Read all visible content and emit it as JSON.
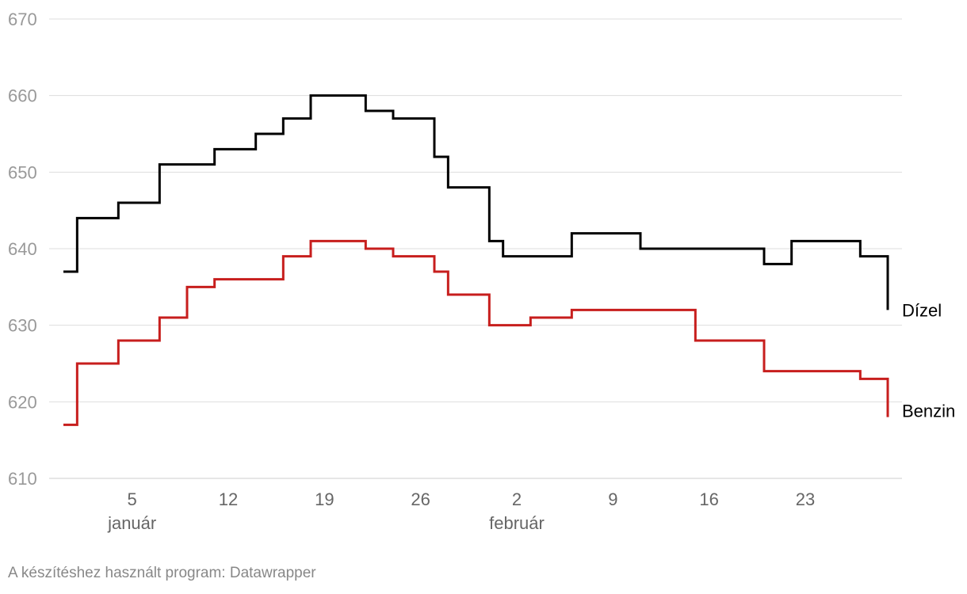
{
  "chart_data": {
    "type": "line",
    "step": true,
    "ylim": [
      610,
      670
    ],
    "yticks": [
      610,
      620,
      630,
      640,
      650,
      660,
      670
    ],
    "x_ticks": [
      {
        "date": "2025-01-05",
        "label": "5"
      },
      {
        "date": "2025-01-12",
        "label": "12"
      },
      {
        "date": "2025-01-19",
        "label": "19"
      },
      {
        "date": "2025-01-26",
        "label": "26"
      },
      {
        "date": "2025-02-02",
        "label": "2"
      },
      {
        "date": "2025-02-09",
        "label": "9"
      },
      {
        "date": "2025-02-16",
        "label": "16"
      },
      {
        "date": "2025-02-23",
        "label": "23"
      }
    ],
    "month_labels": [
      {
        "date": "2025-01-05",
        "label": "január"
      },
      {
        "date": "2025-02-02",
        "label": "február"
      }
    ],
    "xlim": [
      "2024-12-31",
      "2025-03-01"
    ],
    "series": [
      {
        "name": "Dízel",
        "color": "#000000",
        "points": [
          [
            "2024-12-31",
            637
          ],
          [
            "2025-01-01",
            644
          ],
          [
            "2025-01-04",
            646
          ],
          [
            "2025-01-07",
            651
          ],
          [
            "2025-01-11",
            653
          ],
          [
            "2025-01-14",
            655
          ],
          [
            "2025-01-16",
            657
          ],
          [
            "2025-01-18",
            660
          ],
          [
            "2025-01-22",
            658
          ],
          [
            "2025-01-24",
            657
          ],
          [
            "2025-01-27",
            652
          ],
          [
            "2025-01-28",
            648
          ],
          [
            "2025-01-31",
            641
          ],
          [
            "2025-02-01",
            639
          ],
          [
            "2025-02-06",
            642
          ],
          [
            "2025-02-11",
            640
          ],
          [
            "2025-02-20",
            638
          ],
          [
            "2025-02-22",
            641
          ],
          [
            "2025-02-27",
            639
          ],
          [
            "2025-03-01",
            632
          ]
        ]
      },
      {
        "name": "Benzin",
        "color": "#c71e1d",
        "points": [
          [
            "2024-12-31",
            617
          ],
          [
            "2025-01-01",
            625
          ],
          [
            "2025-01-04",
            628
          ],
          [
            "2025-01-07",
            631
          ],
          [
            "2025-01-09",
            635
          ],
          [
            "2025-01-11",
            636
          ],
          [
            "2025-01-16",
            639
          ],
          [
            "2025-01-18",
            641
          ],
          [
            "2025-01-22",
            640
          ],
          [
            "2025-01-24",
            639
          ],
          [
            "2025-01-27",
            637
          ],
          [
            "2025-01-28",
            634
          ],
          [
            "2025-01-31",
            630
          ],
          [
            "2025-02-03",
            631
          ],
          [
            "2025-02-06",
            632
          ],
          [
            "2025-02-15",
            628
          ],
          [
            "2025-02-20",
            624
          ],
          [
            "2025-02-27",
            623
          ],
          [
            "2025-03-01",
            618
          ]
        ]
      }
    ],
    "grid": true,
    "legend": "direct labels at line ends"
  },
  "footer": {
    "credit": "A készítéshez használt program: Datawrapper"
  }
}
